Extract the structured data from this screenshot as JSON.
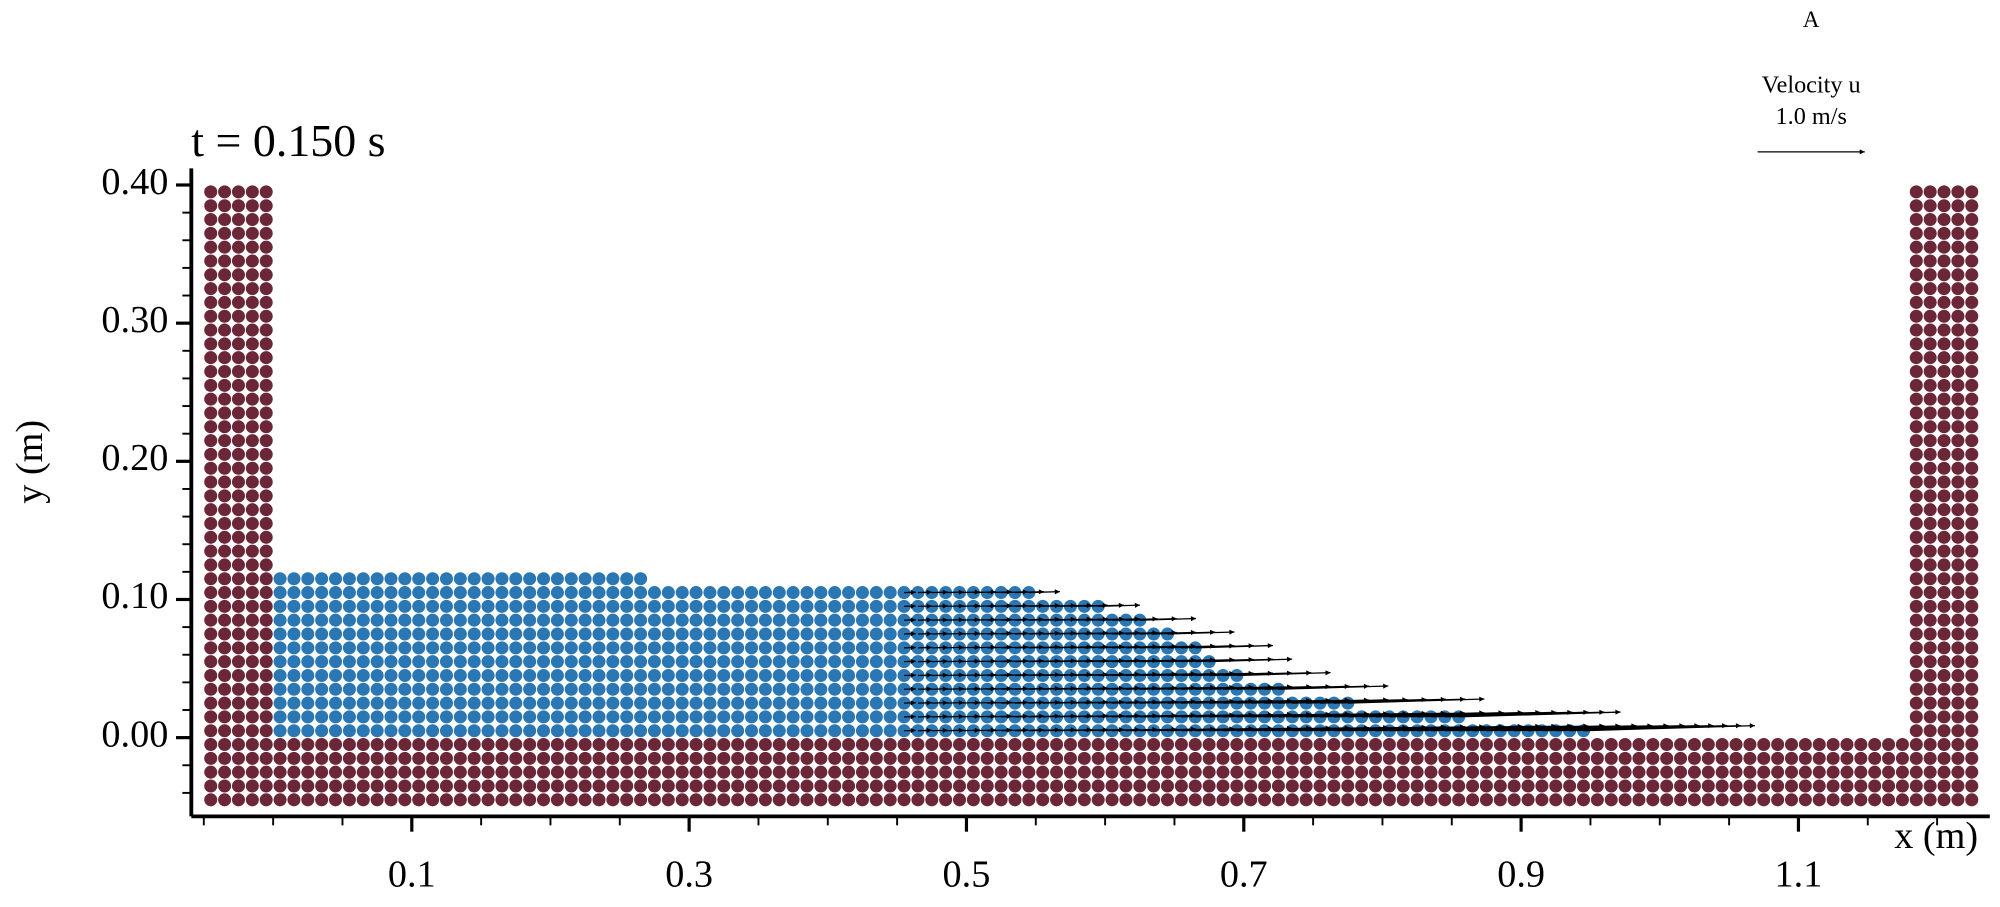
{
  "chart_data": {
    "type": "particles",
    "title": "t = 0.150 s",
    "panel_label": "A",
    "x_label": "x (m)",
    "y_label": "y (m)",
    "xlim": [
      -0.059,
      1.238
    ],
    "ylim": [
      -0.057,
      0.412
    ],
    "xticks": [
      0.1,
      0.3,
      0.5,
      0.7,
      0.9,
      1.1
    ],
    "x_minor_ticks": [
      -0.05,
      0,
      0.05,
      0.15,
      0.2,
      0.25,
      0.35,
      0.4,
      0.45,
      0.55,
      0.6,
      0.65,
      0.75,
      0.8,
      0.85,
      0.95,
      1,
      1.05,
      1.15,
      1.2
    ],
    "yticks": [
      {
        "value": 0,
        "label": "0.00"
      },
      {
        "value": 0.1,
        "label": "0.10"
      },
      {
        "value": 0.2,
        "label": "0.20"
      },
      {
        "value": 0.3,
        "label": "0.30"
      },
      {
        "value": 0.4,
        "label": "0.40"
      }
    ],
    "y_minor_ticks": [
      -0.04,
      -0.02,
      0.02,
      0.04,
      0.06,
      0.08,
      0.12,
      0.14,
      0.16,
      0.18,
      0.22,
      0.24,
      0.26,
      0.28,
      0.32,
      0.34,
      0.36,
      0.38
    ],
    "particle_spacing": 0.01,
    "boundary": {
      "color": "#6b2737",
      "blocks": [
        {
          "x": [
            -0.045,
            -0.005
          ],
          "y": [
            0.005,
            0.395
          ]
        },
        {
          "x": [
            -0.045,
            1.225
          ],
          "y": [
            -0.045,
            -0.005
          ]
        },
        {
          "x": [
            1.185,
            1.225
          ],
          "y": [
            0.005,
            0.395
          ]
        }
      ]
    },
    "fluid": {
      "color": "#2a77b4",
      "surface_x": [
        0.005,
        0.45,
        0.55,
        0.6,
        0.65,
        0.7,
        0.75,
        0.8,
        0.85,
        0.9,
        0.95
      ],
      "surface_y": [
        0.118,
        0.113,
        0.105,
        0.097,
        0.075,
        0.045,
        0.028,
        0.022,
        0.016,
        0.01,
        0.005
      ]
    },
    "velocity": {
      "label": "Velocity u",
      "reference": {
        "value": 1.0,
        "label": "1.0 m/s"
      },
      "x": [
        0.45,
        0.6,
        0.7,
        0.8,
        0.9
      ],
      "u": [
        0.1,
        0.4,
        0.9,
        1.4,
        1.6
      ]
    }
  }
}
